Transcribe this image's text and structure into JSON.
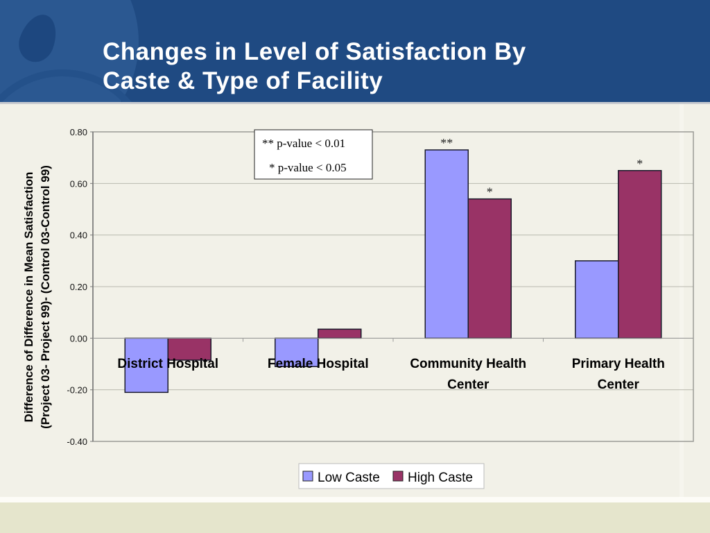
{
  "slide": {
    "title_line1": "Changes in Level of Satisfaction By",
    "title_line2": "Caste & Type of Facility",
    "colors": {
      "header": "#1f4a82",
      "background": "#f2f1e8",
      "footer": "#e5e5cc"
    }
  },
  "chart_data": {
    "type": "bar",
    "title": "Changes in Level of Satisfaction By Caste & Type of Facility",
    "xlabel": "",
    "ylabel_line1": "Difference of Difference in Mean Satisfaction",
    "ylabel_line2": "(Project 03- Project 99)- (Control 03-Control 99)",
    "ylim": [
      -0.4,
      0.8
    ],
    "yticks": [
      -0.4,
      -0.2,
      0.0,
      0.2,
      0.4,
      0.6,
      0.8
    ],
    "ytick_labels": [
      "-0.40",
      "-0.20",
      "0.00",
      "0.20",
      "0.40",
      "0.60",
      "0.80"
    ],
    "grid": true,
    "categories": [
      [
        "District Hospital"
      ],
      [
        "Female Hospital"
      ],
      [
        "Community Health",
        "Center"
      ],
      [
        "Primary Health",
        "Center"
      ]
    ],
    "series": [
      {
        "name": "Low Caste",
        "color": "#9999ff",
        "values": [
          -0.21,
          -0.11,
          0.73,
          0.3
        ],
        "significance": [
          "",
          "",
          "**",
          ""
        ]
      },
      {
        "name": "High Caste",
        "color": "#993366",
        "values": [
          -0.085,
          0.035,
          0.54,
          0.65
        ],
        "significance": [
          "",
          "",
          "*",
          "*"
        ]
      }
    ],
    "annotations": [
      "** p-value < 0.01",
      "* p-value < 0.05"
    ],
    "legend_position": "bottom"
  }
}
